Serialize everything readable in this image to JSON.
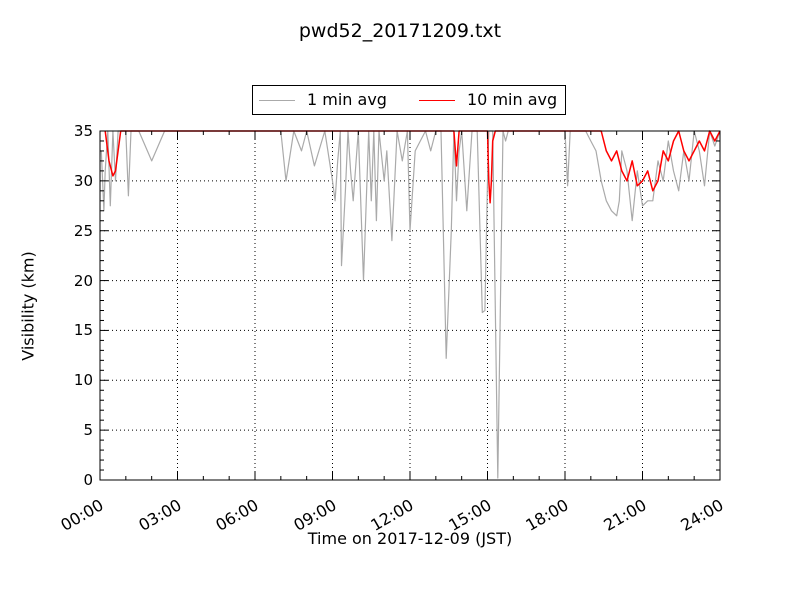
{
  "chart_data": {
    "type": "line",
    "title": "pwd52_20171209.txt",
    "xlabel": "Time on 2017-12-09 (JST)",
    "ylabel": "Visibility (km)",
    "xlim": [
      "00:00",
      "24:00"
    ],
    "ylim": [
      0,
      35
    ],
    "x_ticks": [
      "00:00",
      "03:00",
      "06:00",
      "09:00",
      "12:00",
      "15:00",
      "18:00",
      "21:00",
      "24:00"
    ],
    "y_ticks": [
      "0",
      "5",
      "10",
      "15",
      "20",
      "25",
      "30",
      "35"
    ],
    "grid": true,
    "legend": "top-center",
    "series": [
      {
        "name": "1 min avg",
        "color": "#aaaaaa",
        "x_hours": [
          0.05,
          0.15,
          0.2,
          0.3,
          0.4,
          0.5,
          0.6,
          0.7,
          1.0,
          1.1,
          1.2,
          1.5,
          2.0,
          2.5,
          3.0,
          4.0,
          5.0,
          6.0,
          7.0,
          7.2,
          7.5,
          7.8,
          8.0,
          8.3,
          8.7,
          9.0,
          9.1,
          9.2,
          9.3,
          9.35,
          9.5,
          9.6,
          9.7,
          9.8,
          10.0,
          10.2,
          10.4,
          10.5,
          10.6,
          10.7,
          10.8,
          11.0,
          11.1,
          11.3,
          11.5,
          11.7,
          11.9,
          12.0,
          12.2,
          12.4,
          12.6,
          12.8,
          13.0,
          13.2,
          13.4,
          13.6,
          13.7,
          13.8,
          13.9,
          14.0,
          14.2,
          14.4,
          14.6,
          14.8,
          14.9,
          15.0,
          15.05,
          15.1,
          15.2,
          15.4,
          15.6,
          15.7,
          15.8,
          15.9,
          16.0,
          16.5,
          17.0,
          17.5,
          18.0,
          18.1,
          18.2,
          18.4,
          18.6,
          18.8,
          19.0,
          19.2,
          19.4,
          19.6,
          19.8,
          20.0,
          20.1,
          20.2,
          20.4,
          20.6,
          20.8,
          21.0,
          21.2,
          21.4,
          21.6,
          21.8,
          22.0,
          22.2,
          22.4,
          22.6,
          22.8,
          23.0,
          23.2,
          23.4,
          23.6,
          23.8,
          24.0
        ],
        "values": [
          33,
          27,
          31,
          35,
          27.5,
          35,
          30,
          35,
          35,
          28.5,
          35,
          35,
          32,
          35,
          35,
          35,
          35,
          35,
          35,
          30,
          35,
          33,
          35,
          31.5,
          35,
          30,
          28,
          32,
          35,
          21.5,
          29,
          35,
          31,
          28,
          35,
          20,
          35,
          28,
          35,
          26,
          35,
          30,
          33,
          24,
          35,
          32,
          35,
          25,
          33,
          34,
          35,
          33,
          35,
          35,
          12.2,
          25,
          35,
          28,
          33,
          35,
          27,
          35,
          35,
          16.8,
          17,
          30,
          35,
          35,
          35,
          0.2,
          35,
          34,
          35,
          35,
          35,
          35,
          35,
          35,
          35,
          29.5,
          35,
          35,
          35,
          35,
          34,
          33,
          30,
          28,
          27,
          26.5,
          28,
          33,
          31,
          26,
          31,
          27.5,
          28,
          28,
          32,
          30,
          34,
          31,
          29,
          33,
          30,
          35,
          33,
          29.5,
          35,
          33.5,
          35
        ]
      },
      {
        "name": "10 min avg",
        "color": "#ff0000",
        "x_hours": [
          0.2,
          0.35,
          0.5,
          0.6,
          0.7,
          0.8,
          0.9,
          1.0,
          13.7,
          13.8,
          13.9,
          14.0,
          15.0,
          15.05,
          15.1,
          15.15,
          15.2,
          15.3,
          15.4,
          19.4,
          19.6,
          19.8,
          20.0,
          20.2,
          20.4,
          20.6,
          20.8,
          21.0,
          21.2,
          21.4,
          21.6,
          21.8,
          22.0,
          22.2,
          22.4,
          22.6,
          22.8,
          23.0,
          23.2,
          23.4,
          23.6,
          23.8,
          24.0
        ],
        "values": [
          35,
          32,
          30.5,
          31,
          33,
          35,
          35,
          35,
          35,
          31.5,
          35,
          35,
          35,
          30,
          27.8,
          30,
          34,
          35,
          35,
          35,
          33,
          32,
          33,
          31,
          30,
          32,
          29.5,
          30,
          31,
          29,
          30,
          33,
          32,
          34,
          35,
          33,
          32,
          33,
          34,
          33,
          35,
          34,
          35
        ]
      }
    ]
  }
}
